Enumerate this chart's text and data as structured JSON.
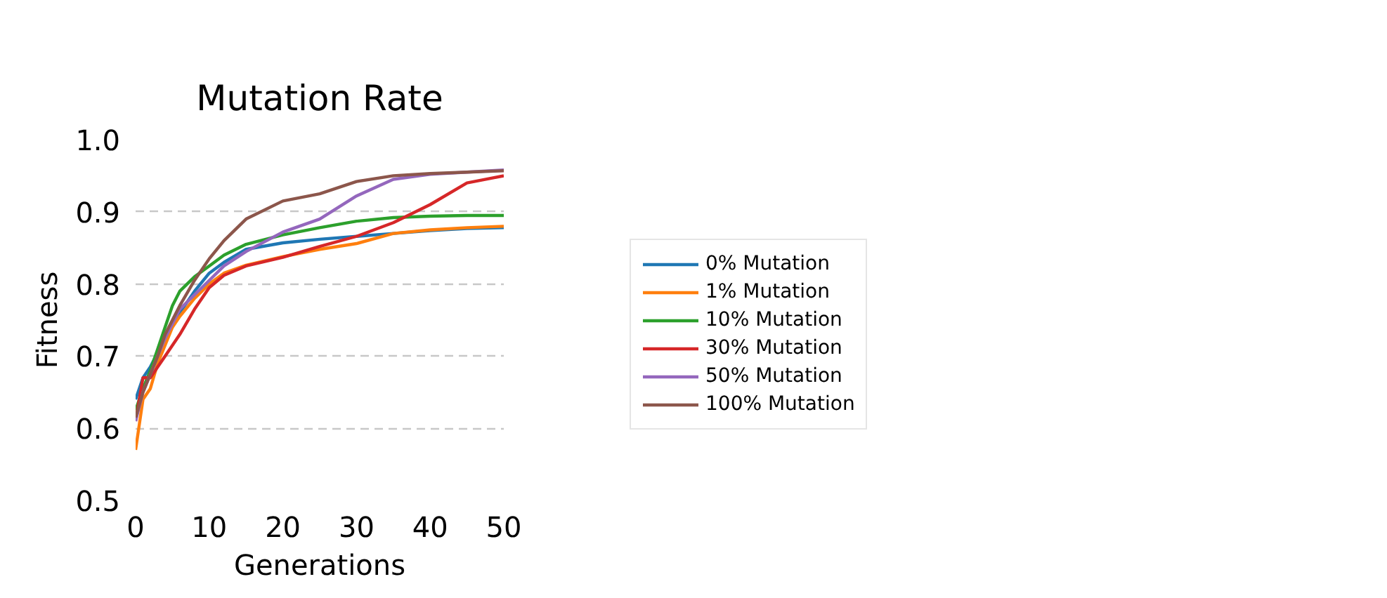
{
  "chart_data": {
    "type": "line",
    "title": "Mutation Rate",
    "xlabel": "Generations",
    "ylabel": "Fitness",
    "x": [
      0,
      1,
      2,
      3,
      4,
      5,
      6,
      8,
      10,
      12,
      15,
      20,
      25,
      30,
      35,
      40,
      45,
      50
    ],
    "xlim": [
      0,
      50
    ],
    "xticks": [
      0,
      10,
      20,
      30,
      40,
      50
    ],
    "ylim": [
      0.5,
      1.0
    ],
    "yticks": [
      {
        "value": 0.5,
        "label": "0.5"
      },
      {
        "value": 0.6,
        "label": "0.6"
      },
      {
        "value": 0.7,
        "label": "0.7"
      },
      {
        "value": 0.8,
        "label": "0.8"
      },
      {
        "value": 0.9,
        "label": "0.9"
      },
      {
        "value": 1.0,
        "label": "1.0"
      }
    ],
    "grid": "y",
    "legend": "right",
    "line_style": "solid",
    "marker": "none",
    "series": [
      {
        "name": "0% Mutation",
        "color": "#1f77b4",
        "values": [
          0.64,
          0.67,
          0.685,
          0.705,
          0.725,
          0.745,
          0.76,
          0.79,
          0.815,
          0.83,
          0.848,
          0.857,
          0.862,
          0.866,
          0.87,
          0.874,
          0.877,
          0.878
        ]
      },
      {
        "name": "1% Mutation",
        "color": "#ff7f0e",
        "values": [
          0.57,
          0.64,
          0.655,
          0.69,
          0.715,
          0.74,
          0.755,
          0.78,
          0.8,
          0.815,
          0.826,
          0.838,
          0.848,
          0.856,
          0.87,
          0.875,
          0.878,
          0.88
        ]
      },
      {
        "name": "10% Mutation",
        "color": "#2ca02c",
        "values": [
          0.625,
          0.655,
          0.68,
          0.71,
          0.74,
          0.77,
          0.79,
          0.81,
          0.825,
          0.84,
          0.855,
          0.868,
          0.878,
          0.887,
          0.892,
          0.894,
          0.895,
          0.895
        ]
      },
      {
        "name": "30% Mutation",
        "color": "#d62728",
        "values": [
          0.61,
          0.67,
          0.67,
          0.685,
          0.7,
          0.715,
          0.73,
          0.765,
          0.795,
          0.812,
          0.825,
          0.837,
          0.852,
          0.866,
          0.885,
          0.91,
          0.94,
          0.95
        ]
      },
      {
        "name": "50% Mutation",
        "color": "#9467bd",
        "values": [
          0.61,
          0.65,
          0.675,
          0.7,
          0.725,
          0.745,
          0.765,
          0.785,
          0.805,
          0.825,
          0.845,
          0.872,
          0.89,
          0.922,
          0.945,
          0.952,
          0.955,
          0.958
        ]
      },
      {
        "name": "100% Mutation",
        "color": "#8c564b",
        "values": [
          0.615,
          0.65,
          0.675,
          0.7,
          0.73,
          0.75,
          0.77,
          0.805,
          0.835,
          0.86,
          0.89,
          0.915,
          0.925,
          0.942,
          0.95,
          0.953,
          0.955,
          0.957
        ]
      }
    ]
  }
}
